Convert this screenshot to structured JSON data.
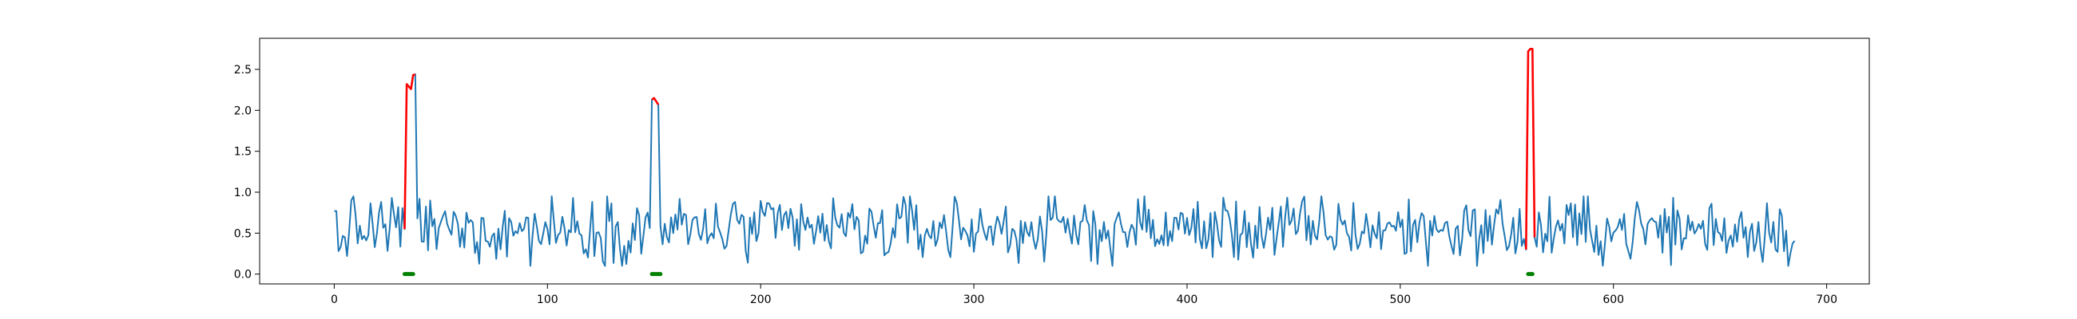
{
  "chart_data": {
    "type": "line",
    "title": "",
    "xlabel": "",
    "ylabel": "",
    "xlim": [
      -35,
      720
    ],
    "ylim": [
      -0.12,
      2.88
    ],
    "grid": false,
    "legend": "none",
    "xticks": [
      0,
      100,
      200,
      300,
      400,
      500,
      600,
      700
    ],
    "yticks": [
      0.0,
      0.5,
      1.0,
      1.5,
      2.0,
      2.5
    ],
    "xtick_labels": [
      "0",
      "100",
      "200",
      "300",
      "400",
      "500",
      "600",
      "700"
    ],
    "ytick_labels": [
      "0.0",
      "0.5",
      "1.0",
      "1.5",
      "2.0",
      "2.5"
    ],
    "series": [
      {
        "role": "signal",
        "color": "#1f77b4",
        "n_points": 686,
        "x_start": 0,
        "x_end": 685,
        "baseline_range": [
          0.1,
          0.95
        ],
        "baseline_mean": 0.55
      },
      {
        "role": "anomaly-segments",
        "color": "#ff0000",
        "segments": [
          {
            "x": [
              33,
              34,
              35,
              36,
              37,
              38
            ],
            "y": [
              0.55,
              2.32,
              2.29,
              2.26,
              2.43,
              2.44
            ]
          },
          {
            "x": [
              149,
              150,
              151,
              152
            ],
            "y": [
              2.13,
              2.15,
              2.11,
              2.07
            ]
          },
          {
            "x": [
              559,
              560,
              561,
              562,
              563
            ],
            "y": [
              0.3,
              2.72,
              2.75,
              2.75,
              0.45
            ]
          }
        ]
      },
      {
        "role": "anomaly-markers",
        "color": "#008000",
        "y": 0,
        "ranges": [
          [
            33,
            37
          ],
          [
            149,
            153
          ],
          [
            560,
            562
          ]
        ]
      }
    ]
  }
}
